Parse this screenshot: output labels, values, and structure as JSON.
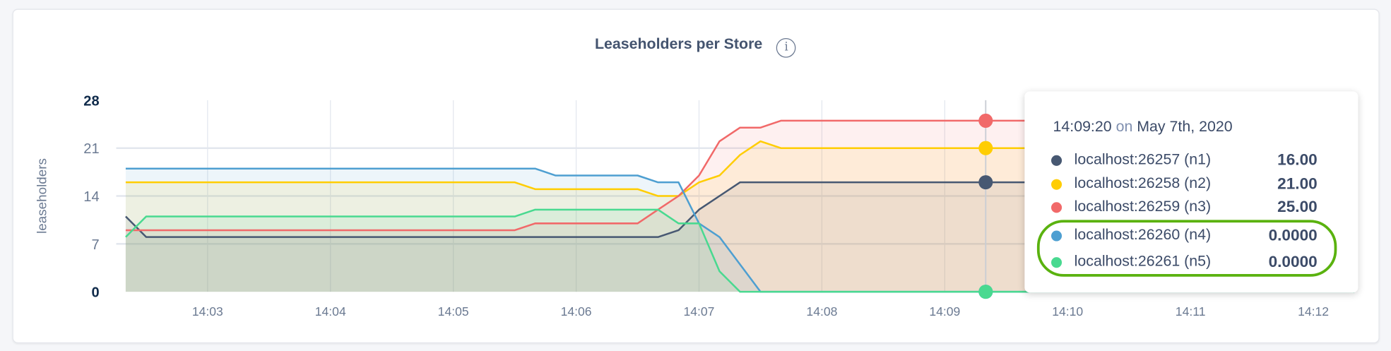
{
  "header": {
    "title": "Leaseholders per Store",
    "info_icon": "info-circle-icon"
  },
  "tooltip": {
    "time": "14:09:20",
    "on": "on",
    "date": "May 7th, 2020",
    "rows": [
      {
        "name": "localhost:26257 (n1)",
        "value": "16.00",
        "color": "#475872"
      },
      {
        "name": "localhost:26258 (n2)",
        "value": "21.00",
        "color": "#ffcd02"
      },
      {
        "name": "localhost:26259 (n3)",
        "value": "25.00",
        "color": "#f16969"
      },
      {
        "name": "localhost:26260 (n4)",
        "value": "0.0000",
        "color": "#4e9fd1"
      },
      {
        "name": "localhost:26261 (n5)",
        "value": "0.0000",
        "color": "#49d990"
      }
    ],
    "highlight_color": "#5ab20f"
  },
  "chart_data": {
    "type": "line",
    "title": "Leaseholders per Store",
    "ylabel": "leaseholders",
    "xlabel": "",
    "ylim": [
      0,
      28
    ],
    "yticks": [
      "0",
      "7",
      "14",
      "21",
      "28"
    ],
    "xticks": [
      "14:03",
      "14:04",
      "14:05",
      "14:06",
      "14:07",
      "14:08",
      "14:09",
      "14:10",
      "14:11",
      "14:12"
    ],
    "grid": true,
    "hover_time": "14:09:20",
    "area_fill": true,
    "series": [
      {
        "name": "localhost:26257 (n1)",
        "color": "#475872",
        "points": [
          [
            "14:02:20",
            11
          ],
          [
            "14:02:30",
            8
          ],
          [
            "14:06:40",
            8
          ],
          [
            "14:06:50",
            9
          ],
          [
            "14:07:00",
            12
          ],
          [
            "14:07:10",
            14
          ],
          [
            "14:07:20",
            16
          ],
          [
            "14:12:20",
            16
          ]
        ]
      },
      {
        "name": "localhost:26258 (n2)",
        "color": "#ffcd02",
        "points": [
          [
            "14:02:20",
            16
          ],
          [
            "14:05:30",
            16
          ],
          [
            "14:05:40",
            15
          ],
          [
            "14:06:30",
            15
          ],
          [
            "14:06:40",
            14
          ],
          [
            "14:06:50",
            14
          ],
          [
            "14:07:00",
            16
          ],
          [
            "14:07:10",
            17
          ],
          [
            "14:07:20",
            20
          ],
          [
            "14:07:30",
            22
          ],
          [
            "14:07:40",
            21
          ],
          [
            "14:12:20",
            21
          ]
        ]
      },
      {
        "name": "localhost:26259 (n3)",
        "color": "#f16969",
        "points": [
          [
            "14:02:20",
            9
          ],
          [
            "14:05:30",
            9
          ],
          [
            "14:05:40",
            10
          ],
          [
            "14:06:30",
            10
          ],
          [
            "14:06:40",
            12
          ],
          [
            "14:06:50",
            14
          ],
          [
            "14:07:00",
            17
          ],
          [
            "14:07:10",
            22
          ],
          [
            "14:07:20",
            24
          ],
          [
            "14:07:30",
            24
          ],
          [
            "14:07:40",
            25
          ],
          [
            "14:12:20",
            25
          ]
        ]
      },
      {
        "name": "localhost:26260 (n4)",
        "color": "#4e9fd1",
        "points": [
          [
            "14:02:20",
            18
          ],
          [
            "14:05:40",
            18
          ],
          [
            "14:05:50",
            17
          ],
          [
            "14:06:30",
            17
          ],
          [
            "14:06:40",
            16
          ],
          [
            "14:06:50",
            16
          ],
          [
            "14:07:00",
            10
          ],
          [
            "14:07:10",
            8
          ],
          [
            "14:07:20",
            4
          ],
          [
            "14:07:30",
            0
          ],
          [
            "14:12:20",
            0
          ]
        ]
      },
      {
        "name": "localhost:26261 (n5)",
        "color": "#49d990",
        "points": [
          [
            "14:02:20",
            8
          ],
          [
            "14:02:30",
            11
          ],
          [
            "14:05:30",
            11
          ],
          [
            "14:05:40",
            12
          ],
          [
            "14:06:40",
            12
          ],
          [
            "14:06:50",
            10
          ],
          [
            "14:07:00",
            10
          ],
          [
            "14:07:10",
            3
          ],
          [
            "14:07:20",
            0
          ],
          [
            "14:12:20",
            0
          ]
        ]
      }
    ]
  }
}
